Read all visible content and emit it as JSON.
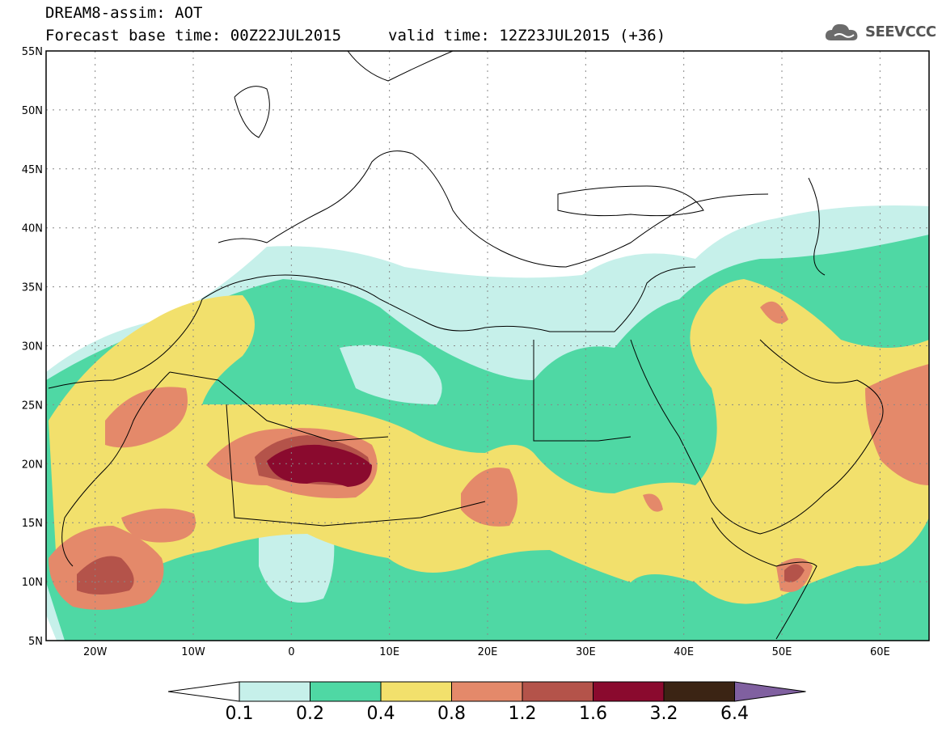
{
  "header": {
    "title": "DREAM8-assim: AOT",
    "base_time": "Forecast base time: 00Z22JUL2015",
    "valid_time": "valid time: 12Z23JUL2015 (+36)"
  },
  "logo": {
    "text": "SEEVCCC",
    "icon": "cloud-icon"
  },
  "map": {
    "lat_labels": [
      "55N",
      "50N",
      "45N",
      "40N",
      "35N",
      "30N",
      "25N",
      "20N",
      "15N",
      "10N",
      "5N"
    ],
    "lon_labels": [
      "20W",
      "10W",
      "0",
      "10E",
      "20E",
      "30E",
      "40E",
      "50E",
      "60E"
    ],
    "lat_range": [
      5,
      55
    ],
    "lon_range": [
      -25,
      65
    ],
    "grid": "dotted"
  },
  "colorbar": {
    "labels": [
      "0.1",
      "0.2",
      "0.4",
      "0.8",
      "1.2",
      "1.6",
      "3.2",
      "6.4"
    ],
    "colors": [
      "#c6f0ea",
      "#4fd8a4",
      "#f2e06c",
      "#e4896a",
      "#b4534a",
      "#8a0a2e",
      "#3b2414",
      "#8060a0"
    ]
  }
}
